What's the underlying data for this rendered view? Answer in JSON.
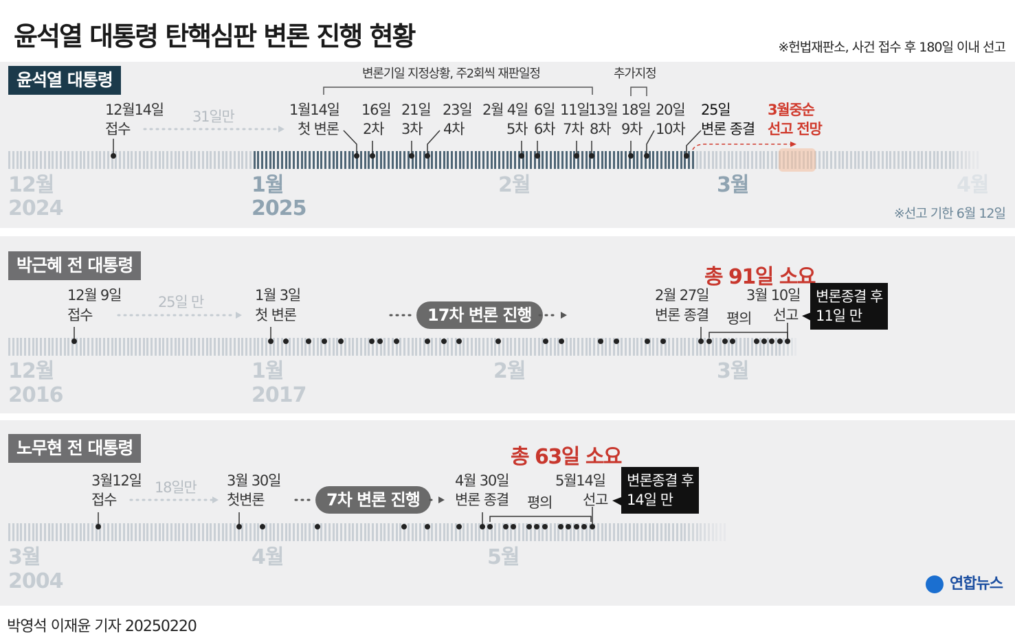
{
  "title": "윤석열 대통령 탄핵심판 변론 진행 현황",
  "top_note": "※헌법재판소, 사건 접수 후 180일 이내 선고",
  "yoon": {
    "tag": "윤석열 대통령",
    "bracket_label": "변론기일 지정상황, 주2회씩 재판일정",
    "added_label": "추가지정",
    "receipt_date": "12월14일",
    "receipt_text": "접수",
    "gap": "31일만",
    "events": [
      {
        "date": "1월14일",
        "label": "첫 변론"
      },
      {
        "date": "16일",
        "label": "2차"
      },
      {
        "date": "21일",
        "label": "3차"
      },
      {
        "date": "23일",
        "label": "4차"
      },
      {
        "date": "2월 4일",
        "label": "5차"
      },
      {
        "date": "6일",
        "label": "6차"
      },
      {
        "date": "11일",
        "label": "7차"
      },
      {
        "date": "13일",
        "label": "8차"
      },
      {
        "date": "18일",
        "label": "9차"
      },
      {
        "date": "20일",
        "label": "10차"
      },
      {
        "date": "25일",
        "label": "변론 종결"
      }
    ],
    "forecast_date": "3월중순",
    "forecast_label": "선고 전망",
    "months": [
      {
        "m": "12월",
        "y": "2024"
      },
      {
        "m": "1월",
        "y": "2025"
      },
      {
        "m": "2월",
        "y": ""
      },
      {
        "m": "3월",
        "y": ""
      },
      {
        "m": "4월",
        "y": ""
      }
    ],
    "deadline": "※선고 기한 6월 12일"
  },
  "park": {
    "tag": "박근혜 전 대통령",
    "total": "총 91일 소요",
    "receipt_date": "12월 9일",
    "receipt_text": "접수",
    "gap": "25일 만",
    "first_date": "1월 3일",
    "first_label": "첫 변론",
    "pill": "17차 변론 진행",
    "end_date": "2월 27일",
    "end_label": "변론 종결",
    "deliberation": "평의",
    "verdict_date": "3월 10일",
    "verdict_label": "선고",
    "box_line1": "변론종결 후",
    "box_line2": "11일 만",
    "months": [
      {
        "m": "12월",
        "y": "2016"
      },
      {
        "m": "1월",
        "y": "2017"
      },
      {
        "m": "2월",
        "y": ""
      },
      {
        "m": "3월",
        "y": ""
      }
    ]
  },
  "roh": {
    "tag": "노무현 전 대통령",
    "total": "총 63일 소요",
    "receipt_date": "3월12일",
    "receipt_text": "접수",
    "gap": "18일만",
    "first_date": "3월 30일",
    "first_label": "첫변론",
    "pill": "7차 변론 진행",
    "end_date": "4월 30일",
    "end_label": "변론 종결",
    "deliberation": "평의",
    "verdict_date": "5월14일",
    "verdict_label": "선고",
    "box_line1": "변론종결 후",
    "box_line2": "14일 만",
    "months": [
      {
        "m": "3월",
        "y": "2004"
      },
      {
        "m": "4월",
        "y": ""
      },
      {
        "m": "5월",
        "y": ""
      }
    ]
  },
  "logo": "연합뉴스",
  "credit": "박영석 이재윤 기자  20250220",
  "colors": {
    "dark_tag": "#1b3a4b",
    "gray_tag": "#6f6f71",
    "accent_red": "#d03a2c",
    "tick_dark": "#4e6575",
    "tick_light": "#c9cfd5"
  }
}
